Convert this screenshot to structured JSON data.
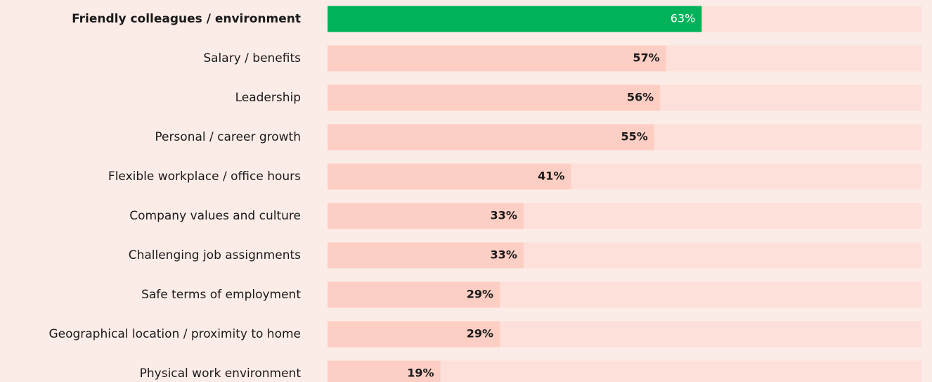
{
  "chart_data": {
    "type": "hbar",
    "categories": [
      "Friendly colleagues / environment",
      "Salary / benefits",
      "Leadership",
      "Personal / career growth",
      "Flexible workplace / office hours",
      "Company values and culture",
      "Challenging job assignments",
      "Safe terms of employment",
      "Geographical location / proximity to home",
      "Physical work environment"
    ],
    "values": [
      63,
      57,
      56,
      55,
      41,
      33,
      33,
      29,
      29,
      19
    ],
    "value_labels": [
      "63%",
      "57%",
      "56%",
      "55%",
      "41%",
      "33%",
      "33%",
      "29%",
      "29%",
      "19%"
    ],
    "colors": [
      "#00b35a",
      "#fdcfc4",
      "#fdcfc4",
      "#fdcfc4",
      "#fdcfc4",
      "#fdcfc4",
      "#fdcfc4",
      "#fdcfc4",
      "#fdcfc4",
      "#fdcfc4"
    ],
    "track_color": "#fde0da",
    "xlim": [
      0,
      100
    ]
  }
}
